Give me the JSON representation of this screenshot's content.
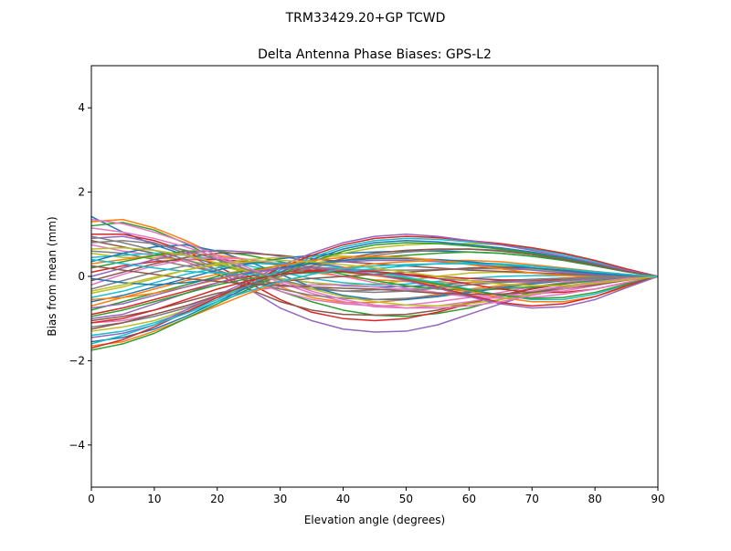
{
  "chart_data": {
    "type": "line",
    "suptitle": "TRM33429.20+GP  TCWD",
    "title": "Delta Antenna Phase Biases: GPS-L2",
    "xlabel": "Elevation angle (degrees)",
    "ylabel": "Bias from mean (mm)",
    "xlim": [
      0,
      90
    ],
    "ylim": [
      -5,
      5
    ],
    "xticks": [
      0,
      10,
      20,
      30,
      40,
      50,
      60,
      70,
      80,
      90
    ],
    "yticks": [
      -4,
      -2,
      0,
      2,
      4
    ],
    "grid": false,
    "legend": "none",
    "colors": [
      "#1f77b4",
      "#ff7f0e",
      "#2ca02c",
      "#d62728",
      "#9467bd",
      "#8c564b",
      "#e377c2",
      "#7f7f7f",
      "#bcbd22",
      "#17becf"
    ],
    "x": [
      0,
      5,
      10,
      15,
      20,
      25,
      30,
      35,
      40,
      45,
      50,
      55,
      60,
      65,
      70,
      75,
      80,
      85,
      90
    ],
    "series": [
      {
        "values": [
          1.42,
          1.05,
          0.75,
          0.5,
          0.28,
          0.1,
          -0.05,
          -0.15,
          -0.22,
          -0.25,
          -0.24,
          -0.2,
          -0.15,
          -0.1,
          -0.07,
          -0.04,
          -0.02,
          -0.01,
          0.0
        ]
      },
      {
        "values": [
          1.3,
          1.35,
          1.15,
          0.85,
          0.5,
          0.1,
          -0.25,
          -0.5,
          -0.62,
          -0.62,
          -0.55,
          -0.42,
          -0.3,
          -0.22,
          -0.15,
          -0.1,
          -0.06,
          -0.03,
          0.0
        ]
      },
      {
        "values": [
          1.2,
          1.28,
          1.1,
          0.78,
          0.4,
          0.0,
          -0.35,
          -0.6,
          -0.8,
          -0.92,
          -0.95,
          -0.88,
          -0.75,
          -0.55,
          -0.38,
          -0.24,
          -0.13,
          -0.05,
          0.0
        ]
      },
      {
        "values": [
          1.0,
          1.0,
          0.85,
          0.6,
          0.25,
          -0.15,
          -0.55,
          -0.85,
          -1.0,
          -1.05,
          -1.0,
          -0.85,
          -0.65,
          -0.45,
          -0.3,
          -0.18,
          -0.09,
          -0.03,
          0.0
        ]
      },
      {
        "values": [
          0.9,
          0.95,
          0.8,
          0.55,
          0.15,
          -0.3,
          -0.75,
          -1.05,
          -1.25,
          -1.32,
          -1.3,
          -1.15,
          -0.9,
          -0.65,
          -0.42,
          -0.25,
          -0.12,
          -0.04,
          0.0
        ]
      },
      {
        "values": [
          0.85,
          0.7,
          0.55,
          0.35,
          0.05,
          -0.3,
          -0.6,
          -0.8,
          -0.9,
          -0.92,
          -0.9,
          -0.8,
          -0.62,
          -0.45,
          -0.28,
          -0.16,
          -0.08,
          -0.03,
          0.0
        ]
      },
      {
        "values": [
          0.75,
          0.6,
          0.5,
          0.35,
          0.1,
          -0.1,
          -0.35,
          -0.55,
          -0.65,
          -0.7,
          -0.68,
          -0.6,
          -0.5,
          -0.38,
          -0.25,
          -0.14,
          -0.07,
          -0.02,
          0.0
        ]
      },
      {
        "values": [
          0.6,
          0.55,
          0.4,
          0.25,
          0.1,
          -0.05,
          -0.2,
          -0.3,
          -0.35,
          -0.32,
          -0.3,
          -0.25,
          -0.2,
          -0.15,
          -0.1,
          -0.05,
          -0.02,
          -0.01,
          0.0
        ]
      },
      {
        "values": [
          0.55,
          0.45,
          0.45,
          0.38,
          0.25,
          0.1,
          -0.05,
          -0.15,
          -0.2,
          -0.18,
          -0.1,
          0.0,
          0.08,
          0.1,
          0.08,
          0.05,
          0.03,
          0.01,
          0.0
        ]
      },
      {
        "values": [
          0.45,
          0.5,
          0.55,
          0.5,
          0.4,
          0.25,
          0.1,
          -0.05,
          -0.15,
          -0.2,
          -0.18,
          -0.12,
          -0.05,
          0.0,
          0.02,
          0.02,
          0.01,
          0.0,
          0.0
        ]
      },
      {
        "values": [
          0.35,
          0.55,
          0.7,
          0.75,
          0.6,
          0.35,
          0.05,
          -0.25,
          -0.45,
          -0.55,
          -0.55,
          -0.48,
          -0.38,
          -0.28,
          -0.18,
          -0.1,
          -0.05,
          -0.02,
          0.0
        ]
      },
      {
        "values": [
          0.3,
          0.4,
          0.5,
          0.55,
          0.5,
          0.4,
          0.25,
          0.1,
          0.0,
          -0.08,
          -0.12,
          -0.15,
          -0.15,
          -0.13,
          -0.1,
          -0.06,
          -0.03,
          -0.01,
          0.0
        ]
      },
      {
        "values": [
          0.2,
          0.35,
          0.5,
          0.6,
          0.6,
          0.5,
          0.35,
          0.2,
          0.05,
          -0.1,
          -0.22,
          -0.3,
          -0.32,
          -0.3,
          -0.25,
          -0.17,
          -0.1,
          -0.04,
          0.0
        ]
      },
      {
        "values": [
          0.1,
          0.25,
          0.35,
          0.4,
          0.4,
          0.35,
          0.3,
          0.22,
          0.15,
          0.1,
          0.05,
          0.0,
          -0.05,
          -0.08,
          -0.09,
          -0.08,
          -0.05,
          -0.02,
          0.0
        ]
      },
      {
        "values": [
          0.0,
          0.2,
          0.4,
          0.55,
          0.62,
          0.58,
          0.48,
          0.35,
          0.22,
          0.1,
          0.02,
          -0.05,
          -0.1,
          -0.13,
          -0.13,
          -0.1,
          -0.06,
          -0.02,
          0.0
        ]
      },
      {
        "values": [
          -0.1,
          0.1,
          0.3,
          0.45,
          0.55,
          0.55,
          0.5,
          0.42,
          0.35,
          0.3,
          0.25,
          0.2,
          0.15,
          0.12,
          0.09,
          0.06,
          0.03,
          0.01,
          0.0
        ]
      },
      {
        "values": [
          -0.2,
          0.05,
          0.25,
          0.4,
          0.45,
          0.4,
          0.3,
          0.15,
          0.0,
          -0.15,
          -0.28,
          -0.38,
          -0.45,
          -0.47,
          -0.43,
          -0.35,
          -0.22,
          -0.09,
          0.0
        ]
      },
      {
        "values": [
          -0.3,
          -0.1,
          0.1,
          0.25,
          0.32,
          0.32,
          0.28,
          0.22,
          0.18,
          0.15,
          0.15,
          0.16,
          0.18,
          0.18,
          0.16,
          0.12,
          0.07,
          0.03,
          0.0
        ]
      },
      {
        "values": [
          -0.4,
          -0.25,
          -0.05,
          0.15,
          0.3,
          0.4,
          0.45,
          0.48,
          0.48,
          0.45,
          0.42,
          0.38,
          0.32,
          0.25,
          0.18,
          0.11,
          0.06,
          0.02,
          0.0
        ]
      },
      {
        "values": [
          -0.5,
          -0.35,
          -0.15,
          0.05,
          0.2,
          0.3,
          0.32,
          0.3,
          0.2,
          0.1,
          -0.02,
          -0.15,
          -0.3,
          -0.45,
          -0.55,
          -0.55,
          -0.42,
          -0.2,
          0.0
        ]
      },
      {
        "values": [
          -0.6,
          -0.45,
          -0.25,
          -0.05,
          0.15,
          0.3,
          0.42,
          0.5,
          0.55,
          0.58,
          0.6,
          0.6,
          0.58,
          0.55,
          0.48,
          0.38,
          0.25,
          0.11,
          0.0
        ]
      },
      {
        "values": [
          -0.7,
          -0.5,
          -0.3,
          -0.1,
          0.05,
          0.15,
          0.18,
          0.15,
          0.1,
          0.02,
          -0.08,
          -0.2,
          -0.35,
          -0.5,
          -0.6,
          -0.6,
          -0.48,
          -0.25,
          0.0
        ]
      },
      {
        "values": [
          -0.8,
          -0.6,
          -0.4,
          -0.2,
          0.0,
          0.15,
          0.25,
          0.32,
          0.38,
          0.45,
          0.5,
          0.55,
          0.58,
          0.55,
          0.48,
          0.38,
          0.25,
          0.11,
          0.0
        ]
      },
      {
        "values": [
          -0.9,
          -0.75,
          -0.55,
          -0.35,
          -0.15,
          0.0,
          0.1,
          0.15,
          0.15,
          0.12,
          0.05,
          -0.05,
          -0.18,
          -0.3,
          -0.38,
          -0.38,
          -0.3,
          -0.15,
          0.0
        ]
      },
      {
        "values": [
          -1.0,
          -0.9,
          -0.65,
          -0.4,
          -0.15,
          0.05,
          0.2,
          0.3,
          0.35,
          0.38,
          0.38,
          0.35,
          0.3,
          0.22,
          0.15,
          0.09,
          0.05,
          0.02,
          0.0
        ]
      },
      {
        "values": [
          -1.05,
          -0.95,
          -0.8,
          -0.6,
          -0.4,
          -0.25,
          -0.12,
          -0.05,
          0.0,
          0.05,
          0.1,
          0.15,
          0.2,
          0.22,
          0.2,
          0.15,
          0.09,
          0.04,
          0.0
        ]
      },
      {
        "values": [
          -1.1,
          -1.05,
          -0.9,
          -0.7,
          -0.5,
          -0.35,
          -0.25,
          -0.2,
          -0.2,
          -0.25,
          -0.32,
          -0.4,
          -0.48,
          -0.52,
          -0.5,
          -0.42,
          -0.3,
          -0.14,
          0.0
        ]
      },
      {
        "values": [
          -1.2,
          -1.1,
          -0.95,
          -0.75,
          -0.5,
          -0.25,
          0.0,
          0.2,
          0.38,
          0.5,
          0.58,
          0.62,
          0.65,
          0.62,
          0.55,
          0.42,
          0.28,
          0.12,
          0.0
        ]
      },
      {
        "values": [
          -1.3,
          -1.2,
          -1.05,
          -0.8,
          -0.5,
          -0.2,
          0.1,
          0.35,
          0.55,
          0.68,
          0.75,
          0.78,
          0.78,
          0.75,
          0.68,
          0.55,
          0.38,
          0.18,
          0.0
        ]
      },
      {
        "values": [
          -1.4,
          -1.3,
          -1.1,
          -0.85,
          -0.55,
          -0.2,
          0.15,
          0.45,
          0.7,
          0.85,
          0.9,
          0.88,
          0.82,
          0.75,
          0.65,
          0.52,
          0.35,
          0.17,
          0.0
        ]
      },
      {
        "values": [
          -1.55,
          -1.45,
          -1.25,
          -0.95,
          -0.6,
          -0.25,
          0.1,
          0.4,
          0.65,
          0.8,
          0.85,
          0.82,
          0.75,
          0.68,
          0.58,
          0.45,
          0.3,
          0.14,
          0.0
        ]
      },
      {
        "values": [
          -1.65,
          -1.55,
          -1.3,
          -1.0,
          -0.7,
          -0.4,
          -0.15,
          0.05,
          0.2,
          0.3,
          0.35,
          0.38,
          0.38,
          0.35,
          0.28,
          0.2,
          0.12,
          0.05,
          0.0
        ]
      },
      {
        "values": [
          -1.75,
          -1.6,
          -1.35,
          -1.0,
          -0.65,
          -0.3,
          0.05,
          0.35,
          0.6,
          0.75,
          0.8,
          0.78,
          0.72,
          0.65,
          0.55,
          0.42,
          0.28,
          0.13,
          0.0
        ]
      },
      {
        "values": [
          -1.7,
          -1.5,
          -1.2,
          -0.85,
          -0.5,
          -0.15,
          0.2,
          0.5,
          0.75,
          0.9,
          0.95,
          0.92,
          0.85,
          0.78,
          0.68,
          0.55,
          0.38,
          0.18,
          0.0
        ]
      },
      {
        "values": [
          -1.45,
          -1.35,
          -1.15,
          -0.8,
          -0.45,
          -0.1,
          0.25,
          0.55,
          0.8,
          0.95,
          1.0,
          0.95,
          0.85,
          0.75,
          0.62,
          0.48,
          0.32,
          0.15,
          0.0
        ]
      },
      {
        "values": [
          -1.25,
          -1.1,
          -0.9,
          -0.7,
          -0.45,
          -0.2,
          0.05,
          0.25,
          0.42,
          0.55,
          0.62,
          0.65,
          0.65,
          0.6,
          0.52,
          0.4,
          0.27,
          0.12,
          0.0
        ]
      },
      {
        "values": [
          1.15,
          1.05,
          0.9,
          0.7,
          0.45,
          0.15,
          -0.15,
          -0.4,
          -0.6,
          -0.72,
          -0.75,
          -0.7,
          -0.6,
          -0.48,
          -0.35,
          -0.23,
          -0.13,
          -0.05,
          0.0
        ]
      },
      {
        "values": [
          0.95,
          0.8,
          0.62,
          0.4,
          0.15,
          -0.1,
          -0.3,
          -0.45,
          -0.52,
          -0.55,
          -0.52,
          -0.45,
          -0.35,
          -0.25,
          -0.16,
          -0.09,
          -0.04,
          -0.01,
          0.0
        ]
      },
      {
        "values": [
          0.65,
          0.68,
          0.62,
          0.5,
          0.32,
          0.12,
          -0.1,
          -0.3,
          -0.48,
          -0.6,
          -0.68,
          -0.7,
          -0.65,
          -0.55,
          -0.42,
          -0.28,
          -0.16,
          -0.06,
          0.0
        ]
      },
      {
        "values": [
          0.4,
          0.3,
          0.2,
          0.12,
          0.08,
          0.05,
          0.05,
          0.08,
          0.12,
          0.18,
          0.25,
          0.3,
          0.32,
          0.3,
          0.25,
          0.18,
          0.1,
          0.04,
          0.0
        ]
      },
      {
        "values": [
          -0.05,
          -0.15,
          -0.2,
          -0.15,
          -0.05,
          0.08,
          0.2,
          0.3,
          0.38,
          0.42,
          0.42,
          0.4,
          0.35,
          0.28,
          0.2,
          0.13,
          0.07,
          0.02,
          0.0
        ]
      },
      {
        "values": [
          -0.55,
          -0.5,
          -0.4,
          -0.25,
          -0.08,
          0.1,
          0.25,
          0.38,
          0.45,
          0.48,
          0.45,
          0.38,
          0.28,
          0.18,
          0.08,
          0.02,
          -0.01,
          -0.01,
          0.0
        ]
      },
      {
        "values": [
          -0.95,
          -0.8,
          -0.6,
          -0.4,
          -0.2,
          -0.05,
          0.05,
          0.1,
          0.1,
          0.05,
          -0.05,
          -0.18,
          -0.32,
          -0.45,
          -0.52,
          -0.5,
          -0.38,
          -0.18,
          0.0
        ]
      },
      {
        "values": [
          -1.1,
          -1.0,
          -0.8,
          -0.55,
          -0.3,
          -0.1,
          0.05,
          0.12,
          0.12,
          0.05,
          -0.08,
          -0.25,
          -0.45,
          -0.62,
          -0.7,
          -0.65,
          -0.48,
          -0.22,
          0.0
        ]
      },
      {
        "values": [
          -0.75,
          -0.65,
          -0.45,
          -0.25,
          -0.05,
          0.1,
          0.18,
          0.2,
          0.15,
          0.05,
          -0.1,
          -0.28,
          -0.48,
          -0.65,
          -0.75,
          -0.72,
          -0.55,
          -0.27,
          0.0
        ]
      },
      {
        "values": [
          0.25,
          0.15,
          0.05,
          -0.05,
          -0.12,
          -0.18,
          -0.22,
          -0.25,
          -0.28,
          -0.3,
          -0.35,
          -0.4,
          -0.42,
          -0.42,
          -0.38,
          -0.3,
          -0.2,
          -0.09,
          0.0
        ]
      },
      {
        "values": [
          1.35,
          1.25,
          1.05,
          0.8,
          0.5,
          0.2,
          -0.1,
          -0.35,
          -0.55,
          -0.68,
          -0.75,
          -0.75,
          -0.7,
          -0.6,
          -0.45,
          -0.3,
          -0.16,
          -0.06,
          0.0
        ]
      },
      {
        "values": [
          0.8,
          0.85,
          0.78,
          0.62,
          0.4,
          0.15,
          -0.08,
          -0.25,
          -0.35,
          -0.38,
          -0.35,
          -0.28,
          -0.2,
          -0.13,
          -0.08,
          -0.04,
          -0.02,
          -0.01,
          0.0
        ]
      },
      {
        "values": [
          -0.35,
          -0.2,
          -0.02,
          0.15,
          0.28,
          0.35,
          0.38,
          0.35,
          0.28,
          0.2,
          0.1,
          0.0,
          -0.1,
          -0.18,
          -0.22,
          -0.22,
          -0.17,
          -0.08,
          0.0
        ]
      },
      {
        "values": [
          -1.6,
          -1.4,
          -1.15,
          -0.88,
          -0.6,
          -0.35,
          -0.12,
          0.05,
          0.18,
          0.25,
          0.28,
          0.3,
          0.3,
          0.28,
          0.24,
          0.18,
          0.11,
          0.05,
          0.0
        ]
      }
    ]
  }
}
